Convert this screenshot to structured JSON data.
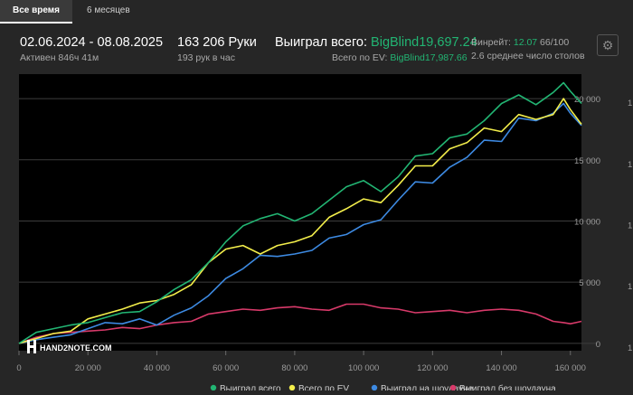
{
  "tabs": {
    "all_time": "Все время",
    "six_months": "6 месяцев"
  },
  "period": {
    "range": "02.06.2024 - 08.08.2025",
    "active": "Активен 846ч 41м"
  },
  "hands": {
    "count": "163 206 Руки",
    "rate": "193 рук в час"
  },
  "won": {
    "label": "Выиграл всего: ",
    "value": "BigBlind19,697.24"
  },
  "ev": {
    "label": "Всего по EV: ",
    "value": "BigBlind17,987.66"
  },
  "winrate": {
    "label": "Винрейт: ",
    "value": "12.07",
    "suffix": " 66/100"
  },
  "tables": {
    "text": "2.6 среднее число столов"
  },
  "watermark": "HAND2NOTE.COM",
  "colors": {
    "won": "#22b573",
    "ev": "#f3ee4b",
    "showdown": "#3d8ae2",
    "non_showdown": "#d83a6a"
  },
  "chart_data": {
    "type": "line",
    "x": [
      0,
      5000,
      10000,
      15000,
      20000,
      25000,
      30000,
      35000,
      40000,
      45000,
      50000,
      55000,
      60000,
      65000,
      70000,
      75000,
      80000,
      85000,
      90000,
      95000,
      100000,
      105000,
      110000,
      115000,
      120000,
      125000,
      130000,
      135000,
      140000,
      145000,
      150000,
      155000,
      158000,
      160000,
      163206
    ],
    "series": [
      {
        "name": "Выиграл всего",
        "values": [
          0,
          900,
          1200,
          1500,
          1700,
          2100,
          2500,
          2600,
          3400,
          4400,
          5200,
          6600,
          8300,
          9600,
          10200,
          10600,
          10000,
          10600,
          11700,
          12800,
          13300,
          12400,
          13600,
          15300,
          15500,
          16800,
          17100,
          18200,
          19600,
          20300,
          19500,
          20500,
          21300,
          20600,
          19600
        ]
      },
      {
        "name": "Всего по EV",
        "values": [
          0,
          400,
          800,
          1000,
          2000,
          2400,
          2800,
          3300,
          3500,
          4000,
          4800,
          6600,
          7700,
          8000,
          7300,
          8000,
          8300,
          8800,
          10300,
          11000,
          11800,
          11500,
          12900,
          14500,
          14500,
          15900,
          16400,
          17600,
          17300,
          18700,
          18300,
          18700,
          20000,
          19100,
          17900
        ]
      },
      {
        "name": "Выиграл на шоудауне",
        "values": [
          0,
          300,
          500,
          700,
          1200,
          1700,
          1600,
          2000,
          1500,
          2300,
          2900,
          3900,
          5300,
          6100,
          7200,
          7100,
          7300,
          7600,
          8600,
          8900,
          9700,
          10100,
          11700,
          13200,
          13100,
          14400,
          15200,
          16600,
          16500,
          18400,
          18200,
          18800,
          19600,
          18800,
          17800
        ]
      },
      {
        "name": "Выиграл без шоудауна",
        "values": [
          0,
          500,
          800,
          900,
          1000,
          1100,
          1300,
          1200,
          1500,
          1700,
          1800,
          2400,
          2600,
          2800,
          2700,
          2900,
          3000,
          2800,
          2700,
          3200,
          3200,
          2900,
          2800,
          2500,
          2600,
          2700,
          2500,
          2700,
          2800,
          2700,
          2400,
          1800,
          1700,
          1600,
          1800
        ]
      }
    ],
    "x_ticks": [
      0,
      20000,
      40000,
      60000,
      80000,
      100000,
      120000,
      140000,
      160000
    ],
    "x_tick_labels": [
      "0",
      "20 000",
      "40 000",
      "60 000",
      "80 000",
      "100 000",
      "120 000",
      "140 000",
      "160 000"
    ],
    "y_ticks": [
      0,
      5000,
      10000,
      15000,
      20000
    ],
    "y_tick_labels": [
      "0",
      "5 000",
      "10 000",
      "15 000",
      "20 000"
    ],
    "right_tick_labels": [
      "1",
      "1",
      "1",
      "1",
      "1"
    ],
    "xlim": [
      0,
      163206
    ],
    "ylim": [
      -600,
      22000
    ],
    "grid": true,
    "legend": "bottom"
  }
}
